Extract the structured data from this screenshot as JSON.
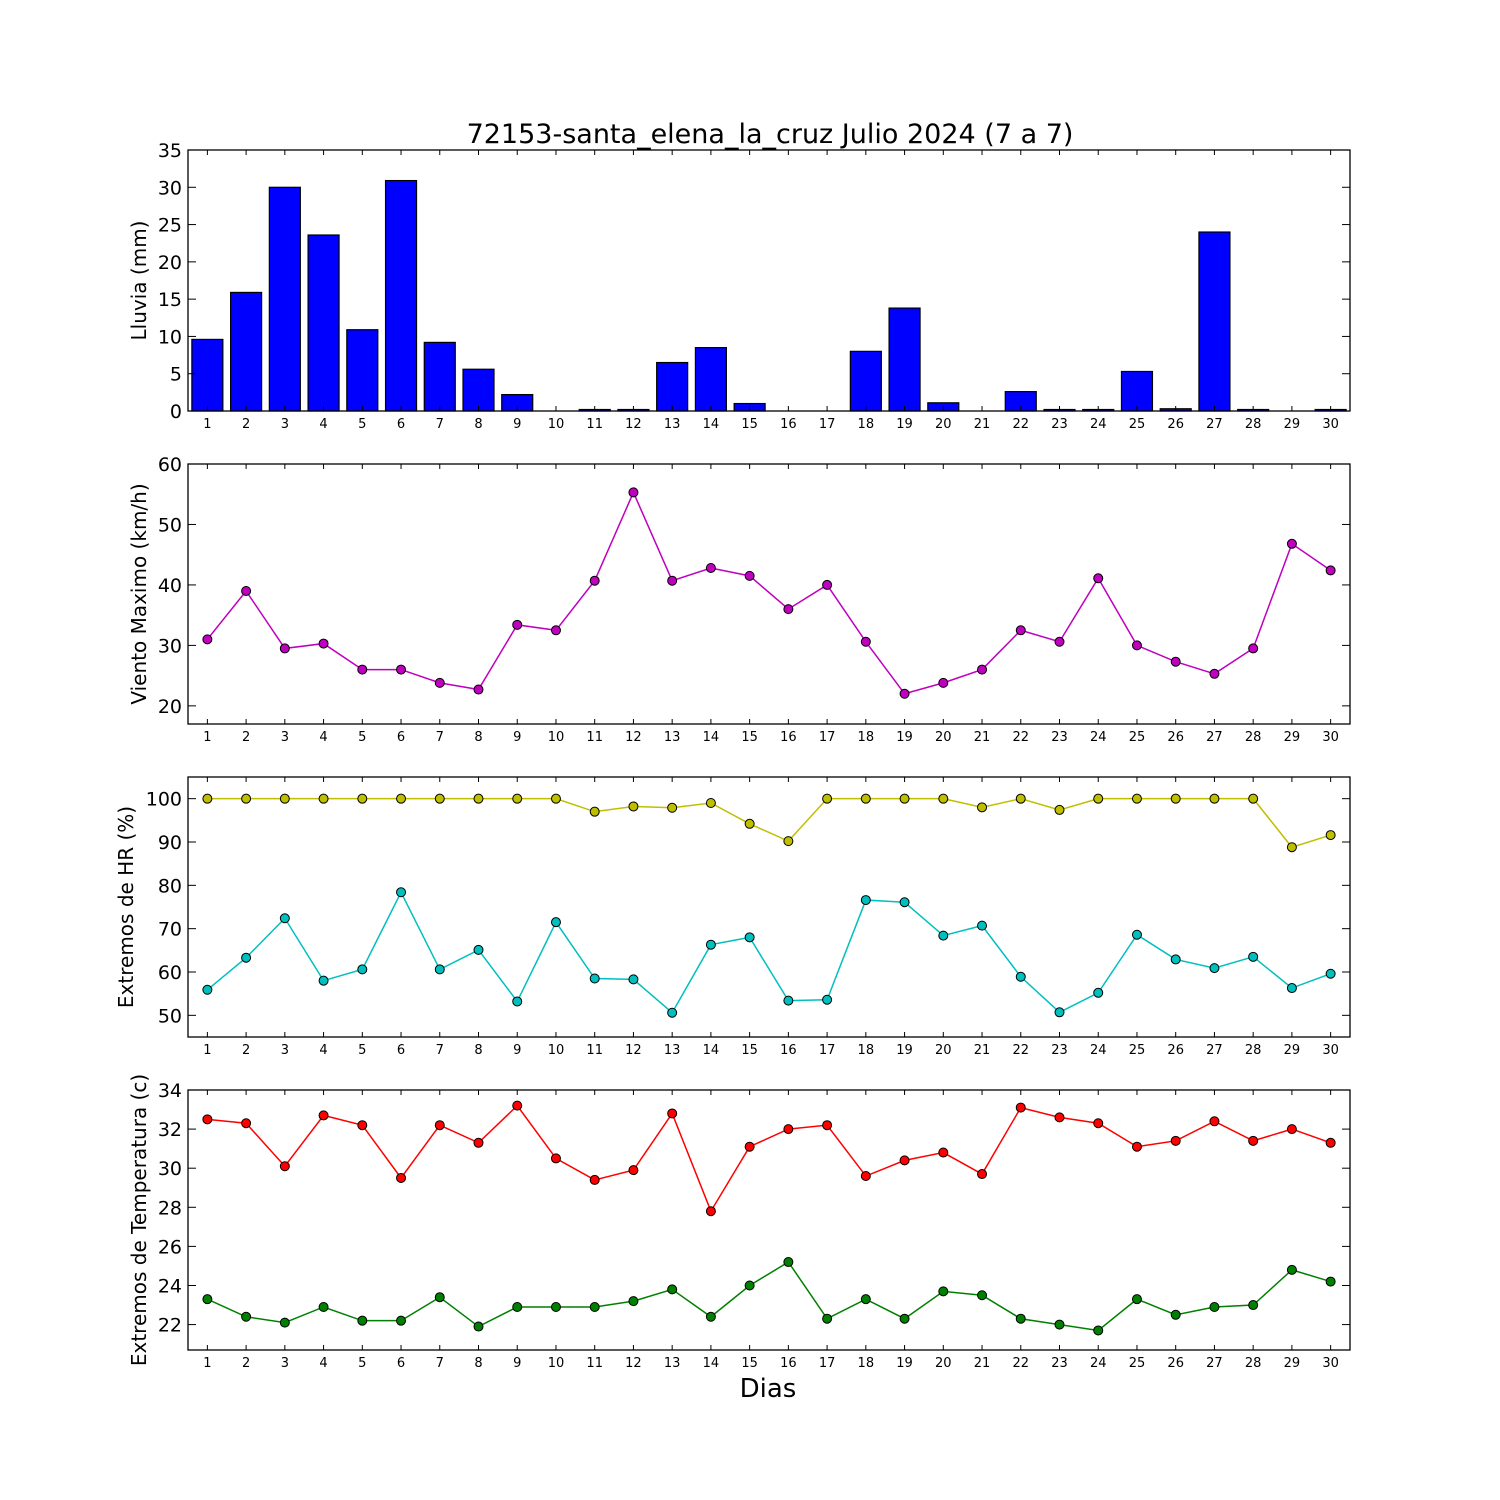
{
  "figure": {
    "title": "72153-santa_elena_la_cruz Julio 2024  (7 a 7)",
    "xlabel": "Dias"
  },
  "chart_data": [
    {
      "type": "bar",
      "ylabel": "Lluvia (mm)",
      "ylim": [
        0,
        35
      ],
      "yticks": [
        0,
        5,
        10,
        15,
        20,
        25,
        30,
        35
      ],
      "categories": [
        "1",
        "2",
        "3",
        "4",
        "5",
        "6",
        "7",
        "8",
        "9",
        "10",
        "11",
        "12",
        "13",
        "14",
        "15",
        "16",
        "17",
        "18",
        "19",
        "20",
        "21",
        "22",
        "23",
        "24",
        "25",
        "26",
        "27",
        "28",
        "29",
        "30"
      ],
      "series": [
        {
          "color": "#0000ff",
          "values": [
            9.6,
            15.9,
            30.0,
            23.6,
            10.9,
            30.9,
            9.2,
            5.6,
            2.2,
            0.0,
            0.2,
            0.2,
            6.5,
            8.5,
            1.0,
            0.0,
            0.0,
            8.0,
            13.8,
            1.1,
            0.0,
            2.6,
            0.2,
            0.2,
            5.3,
            0.3,
            24.0,
            0.2,
            0.0,
            0.2
          ]
        }
      ]
    },
    {
      "type": "line",
      "ylabel": "Viento Maximo (km/h)",
      "ylim": [
        17,
        60
      ],
      "yticks": [
        20,
        30,
        40,
        50,
        60
      ],
      "categories": [
        "1",
        "2",
        "3",
        "4",
        "5",
        "6",
        "7",
        "8",
        "9",
        "10",
        "11",
        "12",
        "13",
        "14",
        "15",
        "16",
        "17",
        "18",
        "19",
        "20",
        "21",
        "22",
        "23",
        "24",
        "25",
        "26",
        "27",
        "28",
        "29",
        "30"
      ],
      "series": [
        {
          "color": "#bf00bf",
          "values": [
            31.0,
            39.0,
            29.5,
            30.3,
            26.0,
            26.0,
            23.8,
            22.7,
            33.4,
            32.5,
            40.7,
            55.3,
            40.7,
            42.8,
            41.5,
            36.0,
            40.0,
            30.6,
            22.0,
            23.8,
            26.0,
            32.5,
            30.6,
            41.1,
            30.0,
            27.3,
            25.3,
            29.5,
            46.8,
            42.4
          ]
        }
      ]
    },
    {
      "type": "line",
      "ylabel": "Extremos de HR (%)",
      "ylim": [
        45,
        105
      ],
      "yticks": [
        50,
        60,
        70,
        80,
        90,
        100
      ],
      "categories": [
        "1",
        "2",
        "3",
        "4",
        "5",
        "6",
        "7",
        "8",
        "9",
        "10",
        "11",
        "12",
        "13",
        "14",
        "15",
        "16",
        "17",
        "18",
        "19",
        "20",
        "21",
        "22",
        "23",
        "24",
        "25",
        "26",
        "27",
        "28",
        "29",
        "30"
      ],
      "series": [
        {
          "color": "#bfbf00",
          "values": [
            100,
            100,
            100,
            100,
            100,
            100,
            100,
            100,
            100,
            100,
            97.0,
            98.2,
            97.9,
            99.0,
            94.2,
            90.2,
            100,
            100,
            100,
            100,
            98.0,
            100,
            97.4,
            100,
            100,
            100,
            100,
            100,
            88.8,
            91.6
          ]
        },
        {
          "color": "#00bfbf",
          "values": [
            55.9,
            63.3,
            72.4,
            58.0,
            60.6,
            78.4,
            60.6,
            65.1,
            53.2,
            71.5,
            58.5,
            58.3,
            50.6,
            66.3,
            68.0,
            53.4,
            53.6,
            76.6,
            76.1,
            68.4,
            70.7,
            58.9,
            50.7,
            55.2,
            68.6,
            62.9,
            60.9,
            63.5,
            56.3,
            59.6
          ]
        }
      ]
    },
    {
      "type": "line",
      "ylabel": "Extremos de Temperatura (c)",
      "ylim": [
        20.7,
        34
      ],
      "yticks": [
        22,
        24,
        26,
        28,
        30,
        32,
        34
      ],
      "categories": [
        "1",
        "2",
        "3",
        "4",
        "5",
        "6",
        "7",
        "8",
        "9",
        "10",
        "11",
        "12",
        "13",
        "14",
        "15",
        "16",
        "17",
        "18",
        "19",
        "20",
        "21",
        "22",
        "23",
        "24",
        "25",
        "26",
        "27",
        "28",
        "29",
        "30"
      ],
      "series": [
        {
          "color": "#ff0000",
          "values": [
            32.5,
            32.3,
            30.1,
            32.7,
            32.2,
            29.5,
            32.2,
            31.3,
            33.2,
            30.5,
            29.4,
            29.9,
            32.8,
            27.8,
            31.1,
            32.0,
            32.2,
            29.6,
            30.4,
            30.8,
            29.7,
            33.1,
            32.6,
            32.3,
            31.1,
            31.4,
            32.4,
            31.4,
            32.0,
            31.3
          ]
        },
        {
          "color": "#008000",
          "values": [
            23.3,
            22.4,
            22.1,
            22.9,
            22.2,
            22.2,
            23.4,
            21.9,
            22.9,
            22.9,
            22.9,
            23.2,
            23.8,
            22.4,
            24.0,
            25.2,
            22.3,
            23.3,
            22.3,
            23.7,
            23.5,
            22.3,
            22.0,
            21.7,
            23.3,
            22.5,
            22.9,
            23.0,
            24.8,
            24.2
          ]
        }
      ]
    }
  ]
}
